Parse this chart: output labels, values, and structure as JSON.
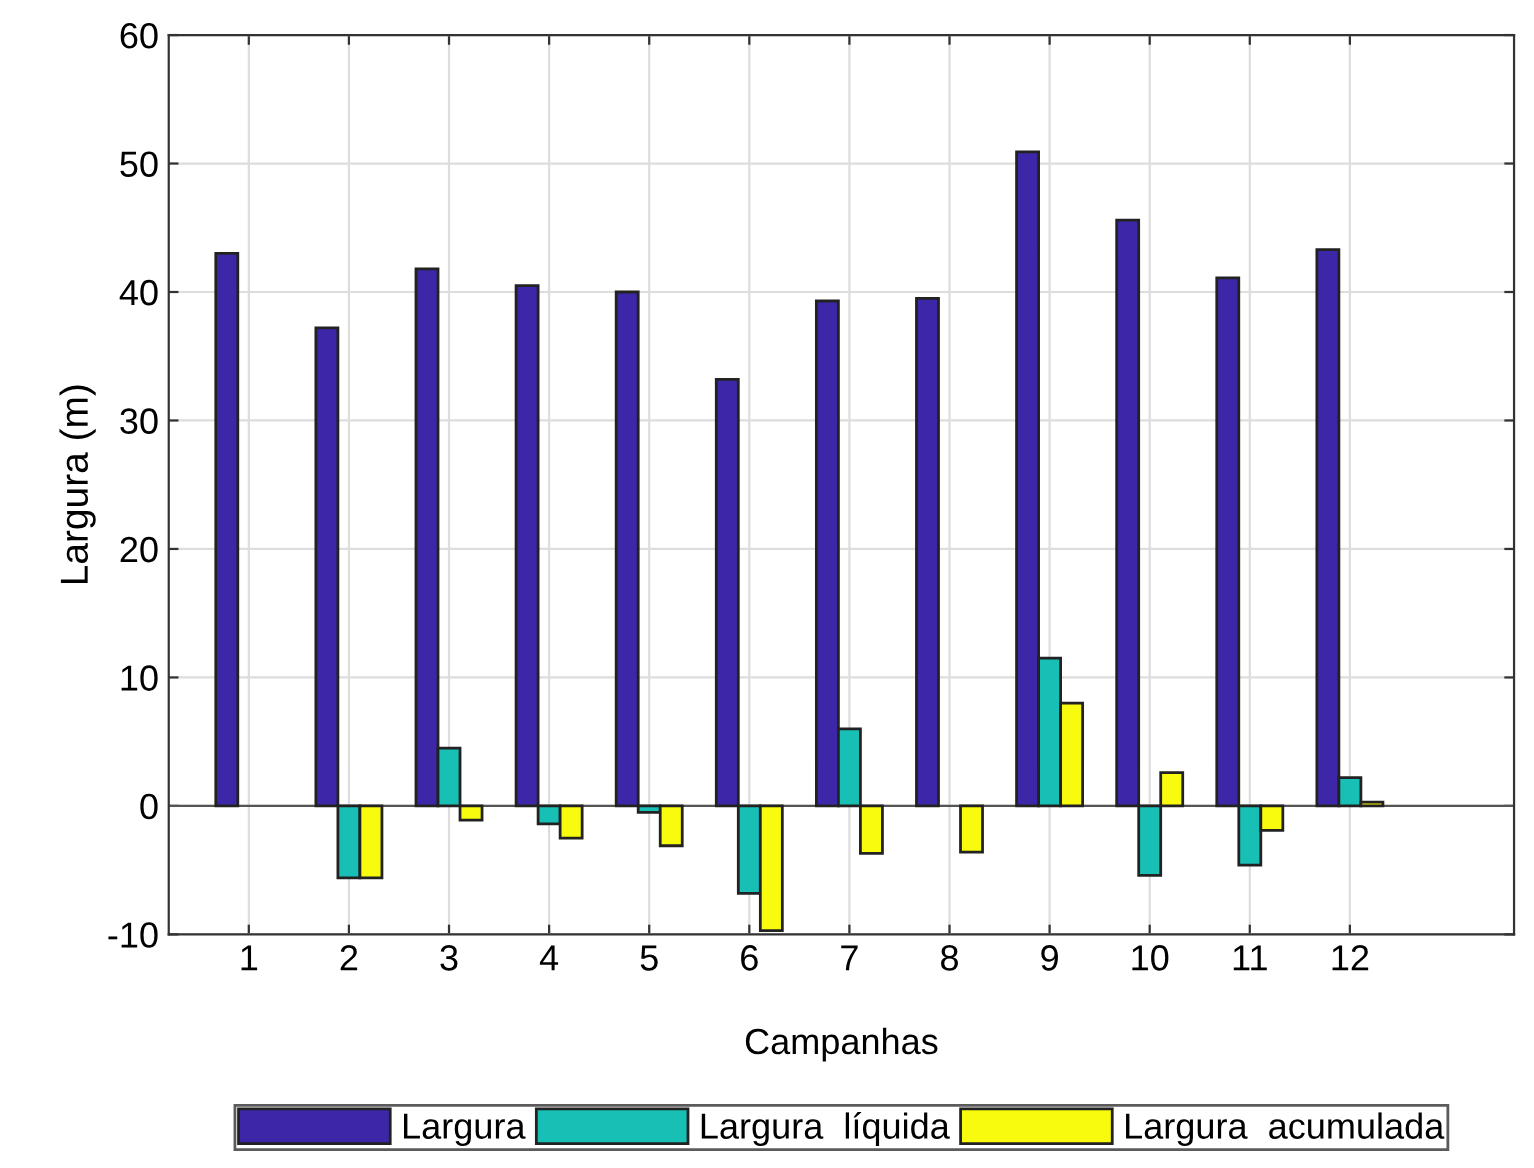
{
  "chart_data": {
    "type": "bar",
    "xlabel": "Campanhas",
    "ylabel": "Largura (m)",
    "categories": [
      "1",
      "2",
      "3",
      "4",
      "5",
      "6",
      "7",
      "8",
      "9",
      "10",
      "11",
      "12"
    ],
    "series": [
      {
        "name": "Largura",
        "color": "#3e26a8",
        "values": [
          43.0,
          37.2,
          41.8,
          40.5,
          40.0,
          33.2,
          39.3,
          39.5,
          50.9,
          45.6,
          41.1,
          43.3
        ]
      },
      {
        "name": "Largura  líquida",
        "color": "#17bfb4",
        "values": [
          null,
          -5.6,
          4.5,
          -1.4,
          -0.5,
          -6.8,
          6.0,
          null,
          11.5,
          -5.4,
          -4.6,
          2.2
        ]
      },
      {
        "name": "Largura  acumulada",
        "color": "#f9fb0e",
        "values": [
          null,
          -5.6,
          -1.1,
          -2.5,
          -3.1,
          -9.7,
          -3.7,
          -3.6,
          8.0,
          2.6,
          -1.9,
          0.3
        ]
      }
    ],
    "ylim": [
      -10,
      60
    ],
    "yticks": [
      -10,
      0,
      10,
      20,
      30,
      40,
      50,
      60
    ],
    "grid": true,
    "legend": "bottom"
  }
}
